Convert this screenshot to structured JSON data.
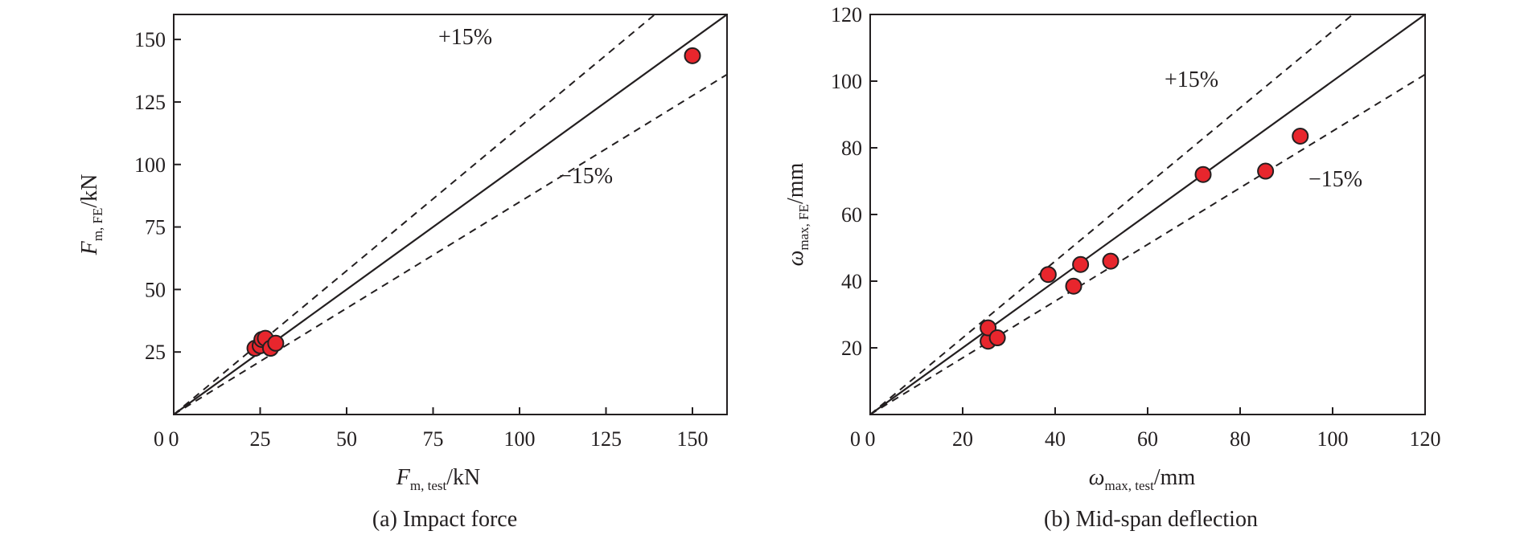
{
  "chart_data": [
    {
      "type": "scatter",
      "caption": "(a) Impact force",
      "xlabel": {
        "main": "F",
        "sub": "m, test",
        "unit": "/kN"
      },
      "ylabel": {
        "main": "F",
        "sub": "m, FE",
        "unit": "/kN"
      },
      "xlim": [
        0,
        160
      ],
      "ylim": [
        0,
        160
      ],
      "xticks": [
        0,
        25,
        50,
        75,
        100,
        125,
        150
      ],
      "yticks": [
        25,
        50,
        75,
        100,
        125,
        150
      ],
      "origin_label": "0",
      "grid": false,
      "reference_lines": [
        {
          "label": "",
          "slope": 1.0,
          "style": "solid"
        },
        {
          "label": "+15%",
          "slope": 1.15,
          "style": "dashed"
        },
        {
          "label": "−15%",
          "slope": 0.85,
          "style": "dashed"
        }
      ],
      "points": [
        {
          "x": 23.5,
          "y": 26.5
        },
        {
          "x": 25.0,
          "y": 27.5
        },
        {
          "x": 25.5,
          "y": 30.0
        },
        {
          "x": 26.5,
          "y": 30.5
        },
        {
          "x": 28.0,
          "y": 26.5
        },
        {
          "x": 29.5,
          "y": 28.5
        },
        {
          "x": 150.0,
          "y": 143.5
        }
      ],
      "marker_color": "#e8262d"
    },
    {
      "type": "scatter",
      "caption": "(b) Mid-span deflection",
      "xlabel": {
        "main": "ω",
        "sub": "max, test",
        "unit": "/mm"
      },
      "ylabel": {
        "main": "ω",
        "sub": "max, FE",
        "unit": "/mm"
      },
      "xlim": [
        0,
        120
      ],
      "ylim": [
        0,
        120
      ],
      "xticks": [
        0,
        20,
        40,
        60,
        80,
        100,
        120
      ],
      "yticks": [
        20,
        40,
        60,
        80,
        100,
        120
      ],
      "origin_label": "0",
      "grid": false,
      "reference_lines": [
        {
          "label": "",
          "slope": 1.0,
          "style": "solid"
        },
        {
          "label": "+15%",
          "slope": 1.15,
          "style": "dashed"
        },
        {
          "label": "−15%",
          "slope": 0.85,
          "style": "dashed"
        }
      ],
      "points": [
        {
          "x": 25.5,
          "y": 22.0
        },
        {
          "x": 25.5,
          "y": 26.0
        },
        {
          "x": 27.5,
          "y": 23.0
        },
        {
          "x": 38.5,
          "y": 42.0
        },
        {
          "x": 44.0,
          "y": 38.5
        },
        {
          "x": 45.5,
          "y": 45.0
        },
        {
          "x": 52.0,
          "y": 46.0
        },
        {
          "x": 72.0,
          "y": 72.0
        },
        {
          "x": 85.5,
          "y": 73.0
        },
        {
          "x": 93.0,
          "y": 83.5
        }
      ],
      "marker_color": "#e8262d"
    }
  ]
}
